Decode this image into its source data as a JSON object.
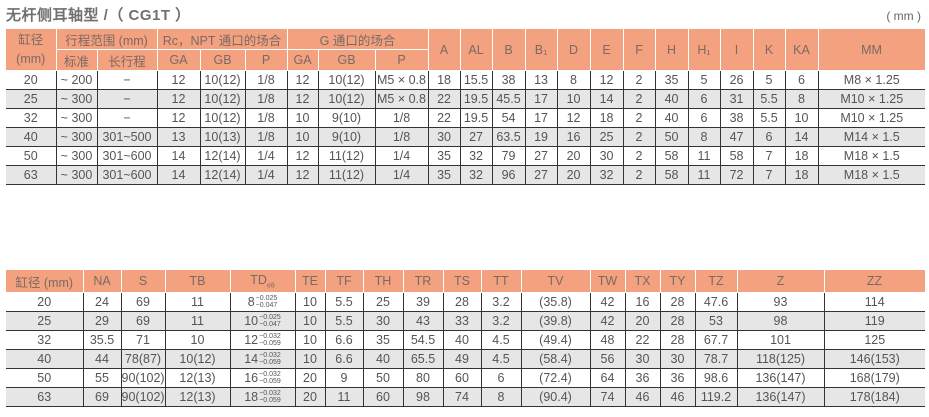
{
  "title": "无杆侧耳轴型 /（ CG1T ）",
  "unit": "( mm )",
  "colors": {
    "header_bg": "#f4a17f",
    "stripe_bg": "#e6e6e6"
  },
  "table1": {
    "header_top": [
      {
        "label": "缸径\n(mm)",
        "rowspan": 2,
        "colspan": 1
      },
      {
        "label": "行程范围 (mm)",
        "colspan": 2
      },
      {
        "label": "Rc，NPT 通口的场合",
        "colspan": 3
      },
      {
        "label": "G 通口的场合",
        "colspan": 3
      },
      {
        "label": "A",
        "rowspan": 2
      },
      {
        "label": "AL",
        "rowspan": 2
      },
      {
        "label": "B",
        "rowspan": 2
      },
      {
        "label": "B₁",
        "rowspan": 2
      },
      {
        "label": "D",
        "rowspan": 2
      },
      {
        "label": "E",
        "rowspan": 2
      },
      {
        "label": "F",
        "rowspan": 2
      },
      {
        "label": "H",
        "rowspan": 2
      },
      {
        "label": "H₁",
        "rowspan": 2
      },
      {
        "label": "I",
        "rowspan": 2
      },
      {
        "label": "K",
        "rowspan": 2
      },
      {
        "label": "KA",
        "rowspan": 2
      },
      {
        "label": "MM",
        "rowspan": 2
      }
    ],
    "header_sub": [
      "标准",
      "长行程",
      "GA",
      "GB",
      "P",
      "GA",
      "GB",
      "P"
    ],
    "rows": [
      [
        "20",
        "~ 200",
        "−",
        "12",
        "10(12)",
        "1/8",
        "12",
        "10(12)",
        "M5 × 0.8",
        "18",
        "15.5",
        "38",
        "13",
        "8",
        "12",
        "2",
        "35",
        "5",
        "26",
        "5",
        "6",
        "M8 × 1.25"
      ],
      [
        "25",
        "~ 300",
        "−",
        "12",
        "10(12)",
        "1/8",
        "12",
        "10(12)",
        "M5 × 0.8",
        "22",
        "19.5",
        "45.5",
        "17",
        "10",
        "14",
        "2",
        "40",
        "6",
        "31",
        "5.5",
        "8",
        "M10 × 1.25"
      ],
      [
        "32",
        "~ 300",
        "−",
        "12",
        "10(12)",
        "1/8",
        "10",
        "9(10)",
        "1/8",
        "22",
        "19.5",
        "54",
        "17",
        "12",
        "18",
        "2",
        "40",
        "6",
        "38",
        "5.5",
        "10",
        "M10 × 1.25"
      ],
      [
        "40",
        "~ 300",
        "301~500",
        "13",
        "10(13)",
        "1/8",
        "10",
        "9(10)",
        "1/8",
        "30",
        "27",
        "63.5",
        "19",
        "16",
        "25",
        "2",
        "50",
        "8",
        "47",
        "6",
        "14",
        "M14 × 1.5"
      ],
      [
        "50",
        "~ 300",
        "301~600",
        "14",
        "12(14)",
        "1/4",
        "12",
        "11(12)",
        "1/4",
        "35",
        "32",
        "79",
        "27",
        "20",
        "30",
        "2",
        "58",
        "11",
        "58",
        "7",
        "18",
        "M18 × 1.5"
      ],
      [
        "63",
        "~ 300",
        "301~600",
        "14",
        "12(14)",
        "1/4",
        "12",
        "11(12)",
        "1/4",
        "35",
        "32",
        "96",
        "27",
        "20",
        "32",
        "2",
        "58",
        "11",
        "72",
        "7",
        "18",
        "M18 × 1.5"
      ]
    ]
  },
  "table2": {
    "headers": [
      "缸径 (mm)",
      "NA",
      "S",
      "TB",
      "TDe8",
      "TE",
      "TF",
      "TH",
      "TR",
      "TS",
      "TT",
      "TV",
      "TW",
      "TX",
      "TY",
      "TZ",
      "Z",
      "ZZ"
    ],
    "rows": [
      [
        "20",
        "24",
        "69",
        "11",
        {
          "base": "8",
          "upper": "−0.025",
          "lower": "−0.047"
        },
        "10",
        "5.5",
        "25",
        "39",
        "28",
        "3.2",
        "(35.8)",
        "42",
        "16",
        "28",
        "47.6",
        "93",
        "114"
      ],
      [
        "25",
        "29",
        "69",
        "11",
        {
          "base": "10",
          "upper": "−0.025",
          "lower": "−0.047"
        },
        "10",
        "5.5",
        "30",
        "43",
        "33",
        "3.2",
        "(39.8)",
        "42",
        "20",
        "28",
        "53",
        "98",
        "119"
      ],
      [
        "32",
        "35.5",
        "71",
        "10",
        {
          "base": "12",
          "upper": "−0.032",
          "lower": "−0.059"
        },
        "10",
        "6.6",
        "35",
        "54.5",
        "40",
        "4.5",
        "(49.4)",
        "48",
        "22",
        "28",
        "67.7",
        "101",
        "125"
      ],
      [
        "40",
        "44",
        "78(87)",
        "10(12)",
        {
          "base": "14",
          "upper": "−0.032",
          "lower": "−0.059"
        },
        "10",
        "6.6",
        "40",
        "65.5",
        "49",
        "4.5",
        "(58.4)",
        "56",
        "30",
        "30",
        "78.7",
        "118(125)",
        "146(153)"
      ],
      [
        "50",
        "55",
        "90(102)",
        "12(13)",
        {
          "base": "16",
          "upper": "−0.032",
          "lower": "−0.059"
        },
        "20",
        "9",
        "50",
        "80",
        "60",
        "6",
        "(72.4)",
        "64",
        "36",
        "36",
        "98.6",
        "136(147)",
        "168(179)"
      ],
      [
        "63",
        "69",
        "90(102)",
        "12(13)",
        {
          "base": "18",
          "upper": "−0.032",
          "lower": "−0.059"
        },
        "20",
        "11",
        "60",
        "98",
        "74",
        "8",
        "(90.4)",
        "74",
        "46",
        "46",
        "119.2",
        "136(147)",
        "178(184)"
      ]
    ]
  }
}
